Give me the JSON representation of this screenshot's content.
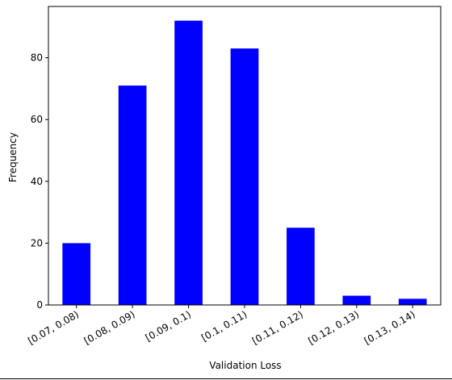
{
  "chart_data": {
    "type": "bar",
    "categories": [
      "[0.07, 0.08)",
      "[0.08, 0.09)",
      "[0.09, 0.1)",
      "[0.1, 0.11)",
      "[0.11, 0.12)",
      "[0.12, 0.13)",
      "[0.13, 0.14)"
    ],
    "values": [
      20,
      71,
      92,
      83,
      25,
      3,
      2
    ],
    "title": "",
    "xlabel": "Validation Loss",
    "ylabel": "Frequency",
    "ylim": [
      0,
      96.6
    ],
    "yticks": [
      0,
      20,
      40,
      60,
      80
    ],
    "bar_color": "#0000ff",
    "grid": false,
    "legend": "none"
  }
}
